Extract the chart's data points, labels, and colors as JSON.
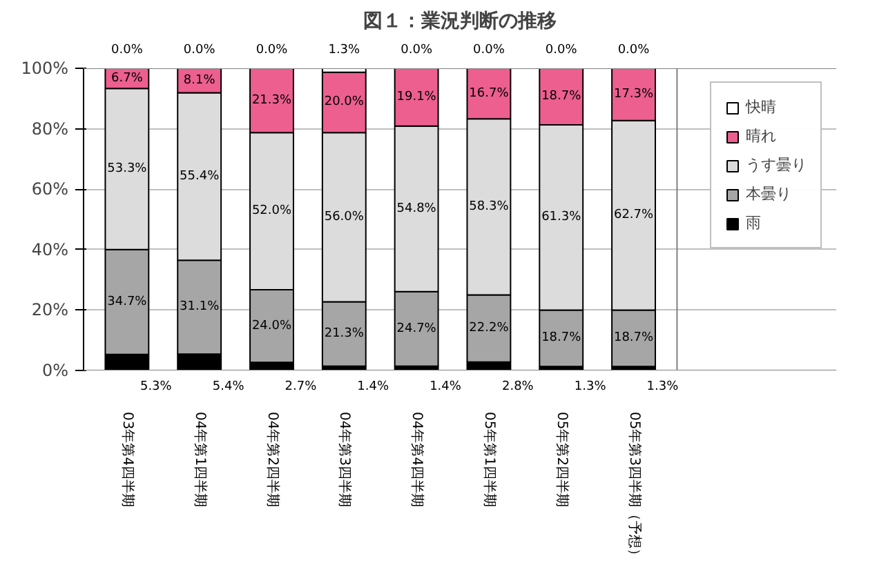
{
  "chart_data": {
    "type": "bar",
    "title": "図１：業況判断の推移",
    "stacked": true,
    "categories": [
      "03年第4四半期",
      "04年第1四半期",
      "04年第2四半期",
      "04年第3四半期",
      "04年第4四半期",
      "05年第1四半期",
      "05年第2四半期",
      "05年第3四半期（予想）"
    ],
    "series": [
      {
        "name": "雨",
        "color": "#000000",
        "values": [
          5.3,
          5.4,
          2.7,
          1.4,
          1.4,
          2.8,
          1.3,
          1.3
        ],
        "value_labels": [
          "5.3%",
          "5.4%",
          "2.7%",
          "1.4%",
          "1.4%",
          "2.8%",
          "1.3%",
          "1.3%"
        ]
      },
      {
        "name": "本曇り",
        "color": "#a6a6a6",
        "values": [
          34.7,
          31.1,
          24.0,
          21.3,
          24.7,
          22.2,
          18.7,
          18.7
        ],
        "value_labels": [
          "34.7%",
          "31.1%",
          "24.0%",
          "21.3%",
          "24.7%",
          "22.2%",
          "18.7%",
          "18.7%"
        ]
      },
      {
        "name": "うす曇り",
        "color": "#dcdcdc",
        "values": [
          53.3,
          55.4,
          52.0,
          56.0,
          54.8,
          58.3,
          61.3,
          62.7
        ],
        "value_labels": [
          "53.3%",
          "55.4%",
          "52.0%",
          "56.0%",
          "54.8%",
          "58.3%",
          "61.3%",
          "62.7%"
        ]
      },
      {
        "name": "晴れ",
        "color": "#ec5f8e",
        "values": [
          6.7,
          8.1,
          21.3,
          20.0,
          19.1,
          16.7,
          18.7,
          17.3
        ],
        "value_labels": [
          "6.7%",
          "8.1%",
          "21.3%",
          "20.0%",
          "19.1%",
          "16.7%",
          "18.7%",
          "17.3%"
        ]
      },
      {
        "name": "快晴",
        "color": "#ffffff",
        "values": [
          0.0,
          0.0,
          0.0,
          1.3,
          0.0,
          0.0,
          0.0,
          0.0
        ],
        "value_labels": [
          "0.0%",
          "0.0%",
          "0.0%",
          "1.3%",
          "0.0%",
          "0.0%",
          "0.0%",
          "0.0%"
        ]
      }
    ],
    "ylim": [
      0,
      100
    ],
    "yticks": [
      {
        "value": 0,
        "label": "0%"
      },
      {
        "value": 20,
        "label": "20%"
      },
      {
        "value": 40,
        "label": "40%"
      },
      {
        "value": 60,
        "label": "60%"
      },
      {
        "value": 80,
        "label": "80%"
      },
      {
        "value": 100,
        "label": "100%"
      }
    ],
    "grid": "y",
    "legend": "right"
  }
}
